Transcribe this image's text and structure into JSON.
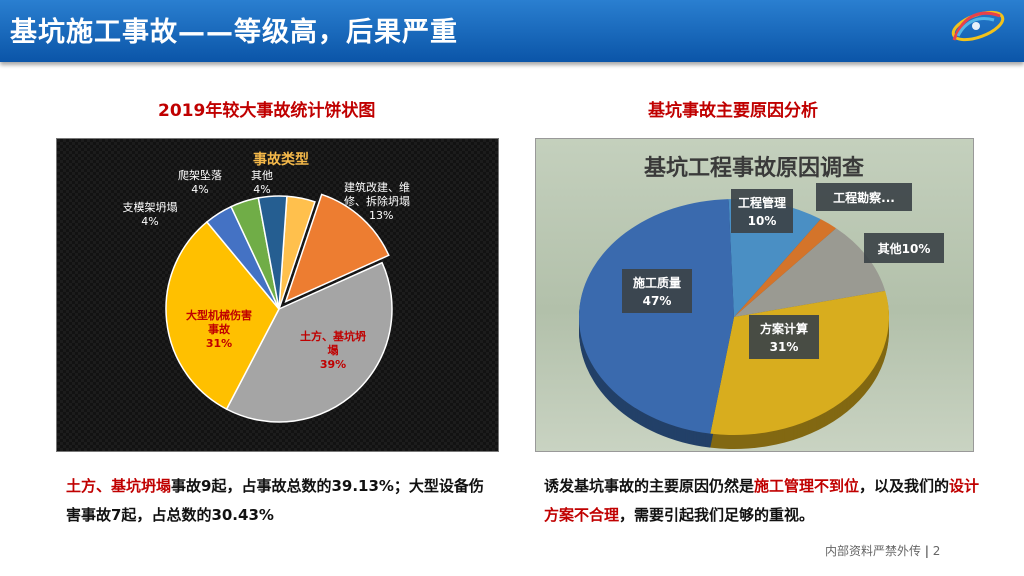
{
  "slide": {
    "title": "基坑施工事故——等级高，后果严重",
    "footer_text": "内部资料严禁外传",
    "page_number": "2"
  },
  "left": {
    "subtitle": "2019年较大事故统计饼状图",
    "para": {
      "red1": "土方、基坑坍塌",
      "p1": "事故9起，占事故总数的39.13%；大型设备伤害事故7起，占总数的30.43%"
    }
  },
  "right": {
    "subtitle": "基坑事故主要原因分析",
    "para": {
      "p1": "诱发基坑事故的主要原因仍然是",
      "red1": "施工管理不到位",
      "p2": "，以及我们的",
      "red2": "设计方案不合理",
      "p3": "，需要引起我们足够的重视。"
    }
  },
  "chart_data": [
    {
      "type": "pie",
      "title": "事故类型",
      "slices": [
        {
          "name": "其他",
          "value_label": "4%",
          "value": 4,
          "color": "#ffc04d"
        },
        {
          "name": "建筑改建、维修、拆除坍塌",
          "value_label": "13%",
          "value": 13,
          "color": "#ed7d31"
        },
        {
          "name": "土方、基坑坍塌",
          "value_label": "39%",
          "value": 39,
          "color": "#a5a5a5"
        },
        {
          "name": "大型机械伤害事故",
          "value_label": "31%",
          "value": 31,
          "color": "#ffc000"
        },
        {
          "name": "支模架坍塌",
          "value_label": "4%",
          "value": 4,
          "color": "#4472c4"
        },
        {
          "name": "爬架坠落",
          "value_label": "4%",
          "value": 4,
          "color": "#70ad47"
        },
        {
          "name": "其他",
          "value_label": "4%",
          "value": 4,
          "color": "#255e91"
        }
      ],
      "labels": {
        "cat_title": "事故类型",
        "top_other_name": "其他",
        "top_other_pct": "4%",
        "jianzhu_l1": "建筑改建、维",
        "jianzhu_l2": "修、拆除坍塌",
        "jianzhu_pct": "13%",
        "tufang_l1": "土方、基坑坍",
        "tufang_l2": "塌",
        "tufang_pct": "39%",
        "daxing_l1": "大型机械伤害",
        "daxing_l2": "事故",
        "daxing_pct": "31%",
        "zhimo_name": "支模架坍塌",
        "zhimo_pct": "4%",
        "paja_name": "爬架坠落",
        "paja_pct": "4%"
      }
    },
    {
      "type": "pie",
      "title": "基坑工程事故原因调查",
      "slices": [
        {
          "name": "工程管理",
          "value_label": "10%",
          "value": 10,
          "color": "#4a8fc4"
        },
        {
          "name": "工程勘察...",
          "value_label": "",
          "value": 2,
          "color": "#d4742a"
        },
        {
          "name": "其他",
          "value_label": "10%",
          "value": 10,
          "color": "#9a9a92"
        },
        {
          "name": "方案计算",
          "value_label": "31%",
          "value": 31,
          "color": "#d8ad1e"
        },
        {
          "name": "施工质量",
          "value_label": "47%",
          "value": 47,
          "color": "#3a6aae"
        }
      ],
      "labels": {
        "gcgl_name": "工程管理",
        "gcgl_pct": "10%",
        "gckc_name": "工程勘察...",
        "qita_text": "其他10%",
        "fajs_name": "方案计算",
        "fajs_pct": "31%",
        "sgzl_name": "施工质量",
        "sgzl_pct": "47%"
      }
    }
  ]
}
